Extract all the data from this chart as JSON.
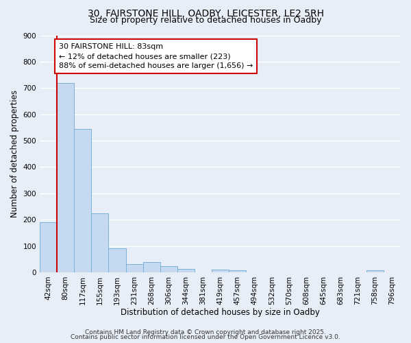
{
  "title_line1": "30, FAIRSTONE HILL, OADBY, LEICESTER, LE2 5RH",
  "title_line2": "Size of property relative to detached houses in Oadby",
  "xlabel": "Distribution of detached houses by size in Oadby",
  "ylabel": "Number of detached properties",
  "bin_labels": [
    "42sqm",
    "80sqm",
    "117sqm",
    "155sqm",
    "193sqm",
    "231sqm",
    "268sqm",
    "306sqm",
    "344sqm",
    "381sqm",
    "419sqm",
    "457sqm",
    "494sqm",
    "532sqm",
    "570sqm",
    "608sqm",
    "645sqm",
    "683sqm",
    "721sqm",
    "758sqm",
    "796sqm"
  ],
  "bar_values": [
    190,
    718,
    545,
    225,
    90,
    30,
    38,
    24,
    12,
    0,
    10,
    8,
    0,
    0,
    0,
    0,
    0,
    0,
    0,
    8,
    0
  ],
  "bar_color": "#c5d9f1",
  "bar_edge_color": "#7ab0d8",
  "vline_x": 1,
  "vline_color": "#cc0000",
  "annotation_text": "30 FAIRSTONE HILL: 83sqm\n← 12% of detached houses are smaller (223)\n88% of semi-detached houses are larger (1,656) →",
  "annotation_box_color": "#ffffff",
  "annotation_box_edge_color": "#cc0000",
  "ylim": [
    0,
    900
  ],
  "yticks": [
    0,
    100,
    200,
    300,
    400,
    500,
    600,
    700,
    800,
    900
  ],
  "footer_line1": "Contains HM Land Registry data © Crown copyright and database right 2025.",
  "footer_line2": "Contains public sector information licensed under the Open Government Licence v3.0.",
  "bg_color": "#e8eef8",
  "plot_bg_color": "#e8eef8",
  "grid_color": "#ffffff",
  "title_fontsize": 10,
  "subtitle_fontsize": 9,
  "axis_label_fontsize": 8.5,
  "tick_fontsize": 7.5,
  "annotation_fontsize": 8,
  "footer_fontsize": 6.5
}
